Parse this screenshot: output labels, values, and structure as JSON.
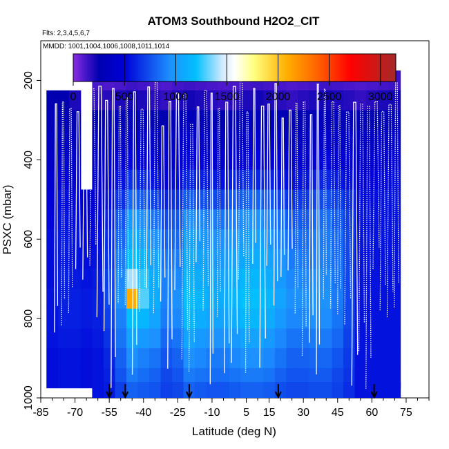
{
  "chart_data": {
    "type": "heatmap",
    "title": "ATOM3 Southbound H2O2_CIT",
    "subtitle_flights": "Flts: 2,3,4,5,6,7",
    "subtitle_dates": "MMDD: 1001,1004,1006,1008,1011,1014",
    "xlabel": "Latitude (deg N)",
    "ylabel": "PSXC (mbar)",
    "xlim": [
      -85,
      85
    ],
    "ylim": [
      1000,
      100
    ],
    "xticks": [
      -85,
      -70,
      -55,
      -40,
      -25,
      -10,
      5,
      15,
      30,
      45,
      60,
      75
    ],
    "xticks_minor_step": 5,
    "yticks": [
      200,
      400,
      600,
      800,
      1000
    ],
    "colorbar": {
      "range": [
        0,
        3150
      ],
      "ticks": [
        0,
        500,
        1000,
        1500,
        2000,
        2500,
        3000
      ],
      "colors": [
        "#8a2be2",
        "#0000b0",
        "#1e90ff",
        "#00bfff",
        "#f0f8ff",
        "#ffff80",
        "#ffb000",
        "#ff3000",
        "#a52a2a"
      ]
    },
    "x": [
      -80,
      -75,
      -70,
      -65,
      -60,
      -55,
      -50,
      -45,
      -40,
      -35,
      -30,
      -25,
      -20,
      -15,
      -10,
      -5,
      0,
      5,
      10,
      15,
      20,
      25,
      30,
      35,
      40,
      45,
      50,
      55,
      60,
      65,
      70
    ],
    "y": [
      200,
      250,
      300,
      350,
      400,
      450,
      500,
      550,
      600,
      650,
      700,
      750,
      800,
      850,
      900,
      950,
      985
    ],
    "z": [
      [
        null,
        null,
        null,
        null,
        120,
        110,
        120,
        140,
        130,
        120,
        110,
        130,
        140,
        130,
        120,
        110,
        120,
        130,
        140,
        130,
        120,
        110,
        120,
        130,
        140,
        130,
        120,
        110,
        120,
        130,
        140
      ],
      [
        250,
        250,
        200,
        null,
        160,
        180,
        200,
        220,
        200,
        180,
        160,
        200,
        220,
        200,
        180,
        160,
        180,
        200,
        220,
        200,
        180,
        160,
        180,
        200,
        220,
        200,
        180,
        160,
        180,
        200,
        220
      ],
      [
        300,
        300,
        260,
        null,
        250,
        280,
        300,
        320,
        300,
        280,
        260,
        300,
        320,
        300,
        280,
        260,
        280,
        300,
        320,
        300,
        280,
        260,
        280,
        300,
        320,
        300,
        280,
        260,
        280,
        300,
        320
      ],
      [
        350,
        380,
        360,
        null,
        300,
        340,
        380,
        420,
        400,
        380,
        360,
        380,
        420,
        400,
        380,
        360,
        380,
        400,
        420,
        400,
        380,
        360,
        380,
        400,
        420,
        400,
        380,
        360,
        380,
        400,
        420
      ],
      [
        400,
        440,
        420,
        null,
        380,
        420,
        460,
        520,
        500,
        460,
        420,
        440,
        520,
        500,
        460,
        440,
        480,
        500,
        520,
        480,
        460,
        440,
        460,
        480,
        520,
        480,
        460,
        420,
        440,
        460,
        480
      ],
      [
        450,
        500,
        470,
        null,
        440,
        480,
        560,
        650,
        620,
        560,
        500,
        540,
        620,
        600,
        580,
        560,
        600,
        640,
        620,
        600,
        560,
        540,
        560,
        600,
        620,
        580,
        540,
        480,
        500,
        520,
        540
      ],
      [
        500,
        540,
        520,
        440,
        480,
        540,
        650,
        820,
        780,
        700,
        600,
        650,
        780,
        750,
        720,
        700,
        760,
        800,
        800,
        760,
        700,
        650,
        680,
        720,
        740,
        700,
        640,
        540,
        540,
        560,
        560
      ],
      [
        520,
        560,
        540,
        480,
        520,
        600,
        760,
        1000,
        950,
        850,
        720,
        760,
        950,
        920,
        880,
        860,
        900,
        950,
        960,
        900,
        840,
        760,
        780,
        820,
        840,
        780,
        700,
        560,
        560,
        560,
        560
      ],
      [
        540,
        580,
        560,
        520,
        540,
        640,
        820,
        1100,
        1050,
        950,
        800,
        820,
        1050,
        1000,
        950,
        950,
        980,
        1020,
        1050,
        980,
        900,
        820,
        840,
        880,
        880,
        820,
        720,
        560,
        560,
        560,
        560
      ],
      [
        540,
        580,
        560,
        540,
        560,
        660,
        880,
        1200,
        1150,
        1050,
        860,
        880,
        1100,
        1050,
        1000,
        1000,
        1040,
        1080,
        1100,
        1040,
        960,
        880,
        880,
        900,
        900,
        840,
        720,
        560,
        560,
        560,
        560
      ],
      [
        540,
        600,
        580,
        560,
        580,
        700,
        920,
        1400,
        1250,
        1100,
        900,
        920,
        1150,
        1100,
        1050,
        1050,
        1100,
        1150,
        1150,
        1100,
        1000,
        920,
        920,
        950,
        940,
        860,
        720,
        560,
        560,
        560,
        560
      ],
      [
        560,
        600,
        600,
        580,
        600,
        720,
        950,
        2100,
        1300,
        1100,
        900,
        950,
        1200,
        1150,
        1100,
        1100,
        1150,
        1200,
        1200,
        1150,
        1050,
        950,
        950,
        980,
        960,
        880,
        720,
        560,
        560,
        560,
        560
      ],
      [
        560,
        600,
        600,
        580,
        600,
        700,
        900,
        1200,
        1150,
        1050,
        880,
        920,
        1150,
        1100,
        1050,
        1050,
        1100,
        1150,
        1150,
        1100,
        1000,
        920,
        920,
        950,
        940,
        860,
        720,
        560,
        560,
        560,
        560
      ],
      [
        560,
        580,
        580,
        560,
        580,
        660,
        860,
        1050,
        1000,
        950,
        820,
        860,
        1050,
        1000,
        960,
        960,
        1000,
        1050,
        1050,
        1000,
        920,
        860,
        860,
        880,
        880,
        820,
        700,
        560,
        560,
        560,
        560
      ],
      [
        540,
        560,
        560,
        540,
        560,
        620,
        800,
        950,
        900,
        860,
        760,
        800,
        950,
        920,
        880,
        880,
        920,
        950,
        950,
        920,
        860,
        800,
        800,
        820,
        820,
        760,
        680,
        560,
        560,
        560,
        560
      ],
      [
        540,
        560,
        560,
        540,
        560,
        600,
        760,
        880,
        840,
        800,
        720,
        760,
        880,
        860,
        840,
        840,
        860,
        880,
        880,
        860,
        800,
        760,
        760,
        780,
        780,
        720,
        660,
        560,
        560,
        560,
        560
      ],
      [
        null,
        null,
        null,
        null,
        560,
        580,
        700,
        800,
        780,
        760,
        700,
        720,
        800,
        780,
        760,
        760,
        780,
        800,
        800,
        780,
        740,
        720,
        720,
        740,
        740,
        700,
        640,
        560,
        560,
        560,
        560
      ]
    ],
    "profile_markers_lat": [
      -55,
      -48,
      -20,
      19,
      61
    ],
    "white_profiles": "flight vertical profile traces",
    "grid": false,
    "legend": "colorbar-top"
  }
}
